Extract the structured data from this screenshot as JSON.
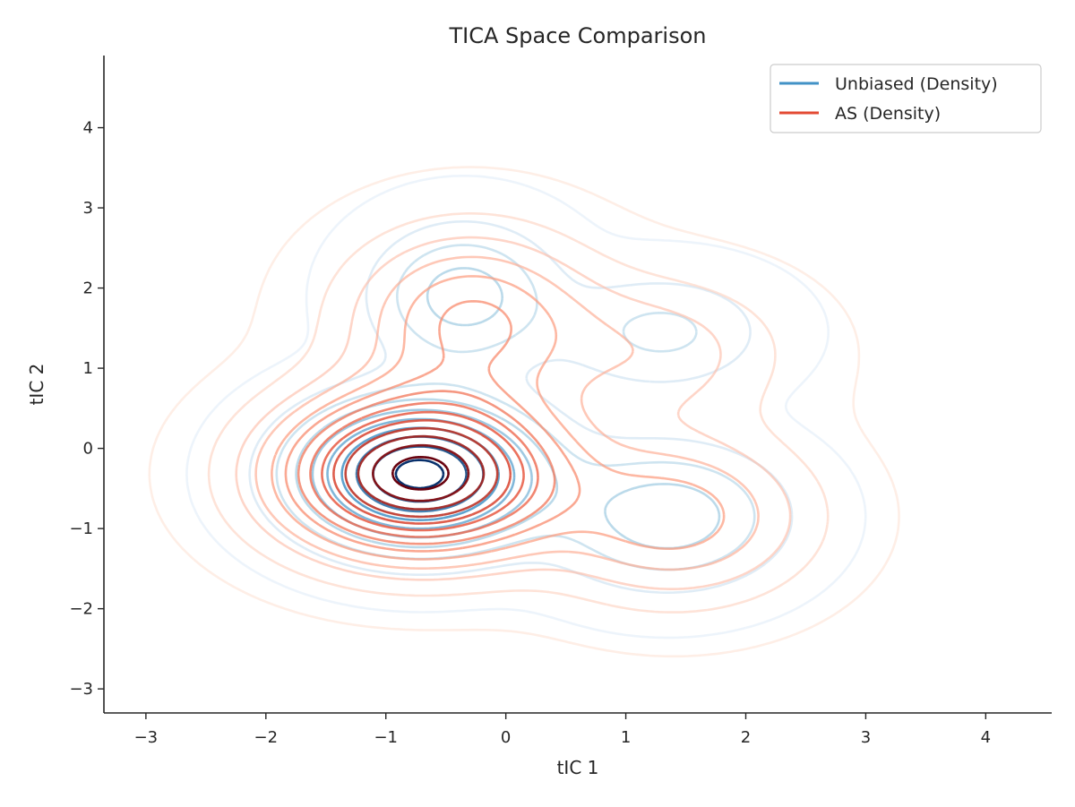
{
  "chart_data": {
    "type": "contour",
    "title": "TICA Space Comparison",
    "xlabel": "tIC 1",
    "ylabel": "tIC 2",
    "xlim": [
      -3.35,
      4.55
    ],
    "ylim": [
      -3.3,
      4.9
    ],
    "xticks": [
      -3,
      -2,
      -1,
      0,
      1,
      2,
      3,
      4
    ],
    "yticks": [
      -3,
      -2,
      -1,
      0,
      1,
      2,
      3,
      4
    ],
    "xtick_labels": [
      "−3",
      "−2",
      "−1",
      "0",
      "1",
      "2",
      "3",
      "4"
    ],
    "ytick_labels": [
      "−3",
      "−2",
      "−1",
      "0",
      "1",
      "2",
      "3",
      "4"
    ],
    "grid": false,
    "legend_position": "top-right",
    "series": [
      {
        "name": "Unbiased (Density)",
        "kind": "density",
        "color": "#4292c6",
        "palette": [
          "#deebf7",
          "#9ecae1",
          "#4292c6",
          "#08306b"
        ],
        "levels": 10,
        "modes": [
          {
            "x": -0.72,
            "y": -0.32,
            "weight": 0.55,
            "sx": 0.62,
            "sy": 0.55
          },
          {
            "x": -0.35,
            "y": 1.9,
            "weight": 0.17,
            "sx": 0.48,
            "sy": 0.55
          },
          {
            "x": 1.3,
            "y": 1.45,
            "weight": 0.1,
            "sx": 0.55,
            "sy": 0.45
          },
          {
            "x": 1.35,
            "y": -0.85,
            "weight": 0.18,
            "sx": 0.6,
            "sy": 0.55
          }
        ]
      },
      {
        "name": "AS (Density)",
        "kind": "density",
        "color": "#e34a33",
        "palette": [
          "#fee0d2",
          "#fc9272",
          "#e34a33",
          "#67000d"
        ],
        "levels": 14,
        "modes": [
          {
            "x": -0.72,
            "y": -0.32,
            "weight": 0.58,
            "sx": 0.72,
            "sy": 0.62
          },
          {
            "x": -0.3,
            "y": 1.6,
            "weight": 0.18,
            "sx": 0.65,
            "sy": 0.7
          },
          {
            "x": 1.25,
            "y": 1.2,
            "weight": 0.08,
            "sx": 0.7,
            "sy": 0.6
          },
          {
            "x": 1.4,
            "y": -0.85,
            "weight": 0.16,
            "sx": 0.7,
            "sy": 0.65
          }
        ]
      }
    ]
  }
}
